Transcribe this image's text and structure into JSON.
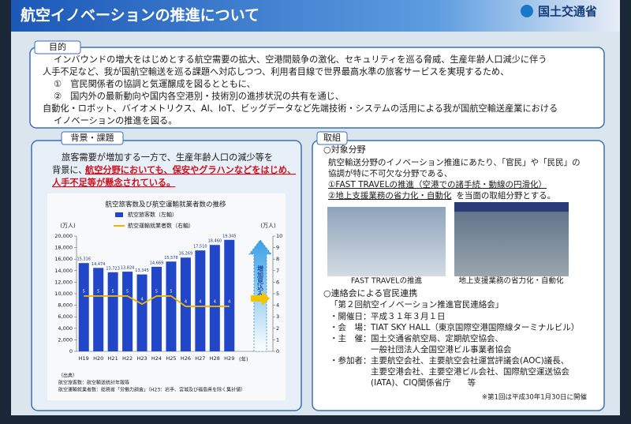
{
  "header": {
    "title": "航空イノベーションの推進について",
    "logo": "国土交通省"
  },
  "purpose": {
    "heading": "目的",
    "lines": [
      "インバウンドの増大をはじめとする航空需要の拡大、空港間競争の激化、セキュリティを巡る脅威、生産年齢人口減少に伴う",
      "人手不足など、我が国航空輸送を巡る課題へ対応しつつ、利用者目線で世界最高水準の旅客サービスを実現するため、",
      "①　官民関係者の協調と気運醸成を図るとともに、",
      "②　国内外の最新動向や国内各空港別・技術別の進捗状況の共有を通じ、",
      "自動化・ロボット、バイオメトリクス、AI、IoT、ビッグデータなど先端技術・システムの活用による我が国航空輸送産業における",
      "イノベーションの推進を図る。"
    ]
  },
  "background": {
    "heading": "背景・課題",
    "lines": [
      "旅客需要が増加する一方で、生産年齢人口の減少等を",
      "背景に、"
    ],
    "highlight": [
      "航空分野においても、保安やグラハンなどをはじめ、",
      "人手不足等が懸念されている。"
    ]
  },
  "chart_data": {
    "type": "bar",
    "title": "航空旅客数及び航空運輸就業者数の推移",
    "categories": [
      "H19",
      "H20",
      "H21",
      "H22",
      "H23",
      "H24",
      "H25",
      "H26",
      "H27",
      "H28",
      "H29"
    ],
    "series": [
      {
        "name": "航空旅客数（左軸）",
        "color": "#2246c8",
        "values": [
          15316,
          14474,
          13723,
          13824,
          13345,
          14669,
          15578,
          16269,
          17510,
          18460,
          19345
        ],
        "value_labels": [
          "15,316",
          "14,474",
          "13,723",
          "13,824",
          "13,345",
          "14,669",
          "15,578",
          "16,269",
          "17,510",
          "18,460",
          "19,345"
        ]
      },
      {
        "name": "航空運輸就業者数（右軸）",
        "color": "#f0b400",
        "axis": "y2",
        "values": [
          4.8,
          4.8,
          4.8,
          4.8,
          4.1,
          4.8,
          4.8,
          3.9,
          3.9,
          3.9,
          3.9
        ],
        "value_labels": [
          "5",
          "5",
          "5",
          "5",
          "4",
          "5",
          "5",
          "4",
          "4",
          "4",
          "4"
        ]
      }
    ],
    "ylim": [
      0,
      20000
    ],
    "yticks": [
      0,
      {
        "value": 2000,
        "label": "2,000"
      },
      {
        "value": 4000,
        "label": "4,000"
      },
      {
        "value": 6000,
        "label": "6,000"
      },
      {
        "value": 8000,
        "label": "8,000"
      },
      {
        "value": 10000,
        "label": "10,000"
      },
      {
        "value": 12000,
        "label": "12,000"
      },
      {
        "value": 14000,
        "label": "14,000"
      },
      {
        "value": 16000,
        "label": "16,000"
      },
      {
        "value": 18000,
        "label": "18,000"
      },
      {
        "value": 20000,
        "label": "20,000"
      }
    ],
    "y2lim": [
      0,
      10
    ],
    "y2ticks": [
      0,
      1,
      2,
      3,
      4,
      5,
      6,
      7,
      8,
      9,
      10
    ],
    "y_unit": "(万人)",
    "y2_unit": "(万人)",
    "x_unit": "(年)",
    "annotation": "増加見込み",
    "sources": [
      "（出典）",
      "航空旅客数：航空輸送統計年報等",
      "航空運輸就業者数：総務省「労働力調査」（H23：岩手、宮城及び福島県を除く集計値）"
    ]
  },
  "initiatives": {
    "heading": "取組",
    "field_heading": "○対象分野",
    "field_lines": [
      "航空輸送分野のイノベーション推進にあたり、「官民」や「民民」の",
      "協調が特に不可欠な分野である、"
    ],
    "item1": "①FAST TRAVELの推進（空港での諸手続・動線の円滑化）",
    "item2": "②地上支援業務の省力化・自動化",
    "item2_rest": "を当面の取組分野とする。",
    "photo_captions": [
      "FAST TRAVELの推進",
      "地上支援業務の省力化・自動化"
    ],
    "council_heading": "○連絡会による官民連携",
    "council_name": "「第２回航空イノベーション推進官民連絡会」",
    "rows": [
      {
        "label": "・開催日：",
        "lines": [
          "平成３１年３月１日"
        ]
      },
      {
        "label": "・会　場：",
        "lines": [
          "TIAT SKY HALL（東京国際空港国際線ターミナルビル）"
        ]
      },
      {
        "label": "・主　催：",
        "lines": [
          "国土交通省航空局、定期航空協会、",
          "一般社団法人全国空港ビル事業者協会"
        ]
      },
      {
        "label": "・参加者：",
        "lines": [
          "主要航空会社、主要航空会社運営評議会(AOC)議長、",
          "主要空港会社、主要空港ビル会社、国際航空運送協会",
          "(IATA)、CIQ関係省庁　　等"
        ]
      }
    ],
    "note": "※第1回は平成30年1月30日に開催"
  }
}
